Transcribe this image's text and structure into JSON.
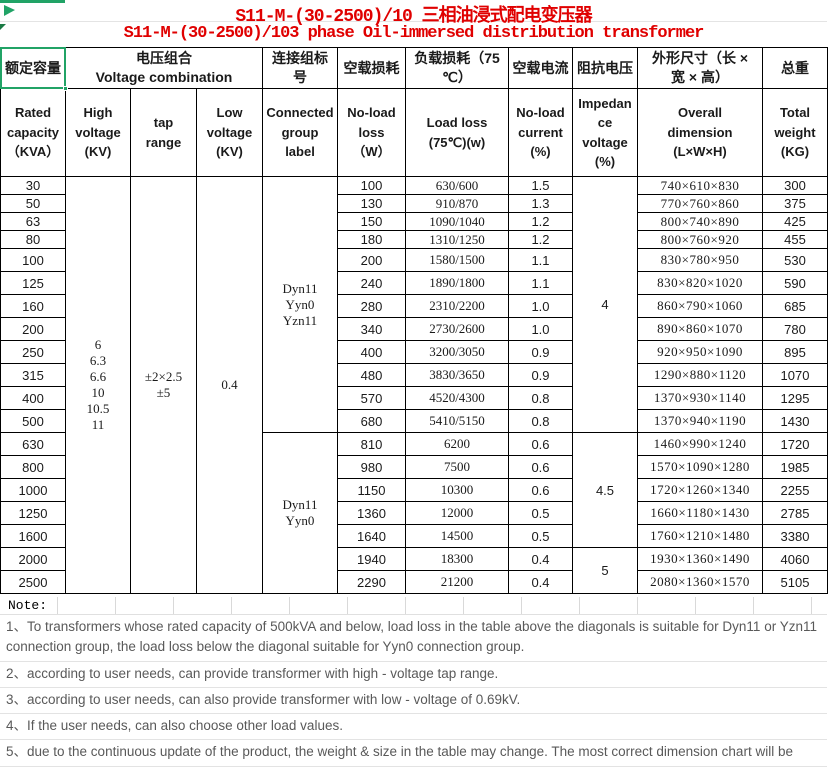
{
  "accent": {
    "selection_green": "#21a366",
    "title_red": "#e00000",
    "note_gray": "#595959"
  },
  "titles": {
    "line1": "S11-M-(30-2500)/10 三相油浸式配电变压器",
    "line2": "S11-M-(30-2500)/103 phase Oil-immersed distribution transformer"
  },
  "header_row1": {
    "rated_capacity": "额定容量",
    "voltage_combination_cn": "电压组合",
    "voltage_combination_en": "Voltage combination",
    "connection_group": "连接组标\n号",
    "no_load_loss": "空载损耗",
    "load_loss": "负载损耗（75\n℃）",
    "no_load_current": "空载电流",
    "impedance_voltage": "阻抗电压",
    "overall_dimension": "外形尺寸（长 ×\n宽 × 高）",
    "total_weight": "总重"
  },
  "header_row2": {
    "rated_capacity": "Rated\ncapacity\n（KVA）",
    "high_voltage": "High\nvoltage\n(KV)",
    "tap_range": "tap\nrange",
    "low_voltage": "Low\nvoltage\n(KV)",
    "connected_group": "Connected\ngroup\nlabel",
    "no_load_loss": "No-load\nloss\n（W）",
    "load_loss": "Load loss\n(75℃)(w)",
    "no_load_current": "No-load\ncurrent\n(%)",
    "impedance_voltage": "Impedan\nce\nvoltage\n(%)",
    "overall_dimension": "Overall\ndimension\n(L×W×H)",
    "total_weight": "Total\nweight\n(KG)"
  },
  "merged": {
    "high_voltage": "6\n6.3\n6.6\n10\n10.5\n11",
    "tap_range": "±2×2.5\n±5",
    "low_voltage": "0.4",
    "connected_group_upper": "Dyn11\nYyn0\nYzn11",
    "connected_group_lower": "Dyn11\nYyn0",
    "impedance_upper": "4",
    "impedance_mid": "4.5",
    "impedance_lower": "5"
  },
  "rows": [
    {
      "capacity": "30",
      "no_load_loss": "100",
      "load_loss": "630/600",
      "no_load_current": "1.5",
      "dimension": "740×610×830",
      "weight": "300"
    },
    {
      "capacity": "50",
      "no_load_loss": "130",
      "load_loss": "910/870",
      "no_load_current": "1.3",
      "dimension": "770×760×860",
      "weight": "375"
    },
    {
      "capacity": "63",
      "no_load_loss": "150",
      "load_loss": "1090/1040",
      "no_load_current": "1.2",
      "dimension": "800×740×890",
      "weight": "425"
    },
    {
      "capacity": "80",
      "no_load_loss": "180",
      "load_loss": "1310/1250",
      "no_load_current": "1.2",
      "dimension": "800×760×920",
      "weight": "455"
    },
    {
      "capacity": "100",
      "no_load_loss": "200",
      "load_loss": "1580/1500",
      "no_load_current": "1.1",
      "dimension": "830×780×950",
      "weight": "530"
    },
    {
      "capacity": "125",
      "no_load_loss": "240",
      "load_loss": "1890/1800",
      "no_load_current": "1.1",
      "dimension": "830×820×1020",
      "weight": "590"
    },
    {
      "capacity": "160",
      "no_load_loss": "280",
      "load_loss": "2310/2200",
      "no_load_current": "1.0",
      "dimension": "860×790×1060",
      "weight": "685"
    },
    {
      "capacity": "200",
      "no_load_loss": "340",
      "load_loss": "2730/2600",
      "no_load_current": "1.0",
      "dimension": "890×860×1070",
      "weight": "780"
    },
    {
      "capacity": "250",
      "no_load_loss": "400",
      "load_loss": "3200/3050",
      "no_load_current": "0.9",
      "dimension": "920×950×1090",
      "weight": "895"
    },
    {
      "capacity": "315",
      "no_load_loss": "480",
      "load_loss": "3830/3650",
      "no_load_current": "0.9",
      "dimension": "1290×880×1120",
      "weight": "1070"
    },
    {
      "capacity": "400",
      "no_load_loss": "570",
      "load_loss": "4520/4300",
      "no_load_current": "0.8",
      "dimension": "1370×930×1140",
      "weight": "1295"
    },
    {
      "capacity": "500",
      "no_load_loss": "680",
      "load_loss": "5410/5150",
      "no_load_current": "0.8",
      "dimension": "1370×940×1190",
      "weight": "1430"
    },
    {
      "capacity": "630",
      "no_load_loss": "810",
      "load_loss": "6200",
      "no_load_current": "0.6",
      "dimension": "1460×990×1240",
      "weight": "1720"
    },
    {
      "capacity": "800",
      "no_load_loss": "980",
      "load_loss": "7500",
      "no_load_current": "0.6",
      "dimension": "1570×1090×1280",
      "weight": "1985"
    },
    {
      "capacity": "1000",
      "no_load_loss": "1150",
      "load_loss": "10300",
      "no_load_current": "0.6",
      "dimension": "1720×1260×1340",
      "weight": "2255"
    },
    {
      "capacity": "1250",
      "no_load_loss": "1360",
      "load_loss": "12000",
      "no_load_current": "0.5",
      "dimension": "1660×1180×1430",
      "weight": "2785"
    },
    {
      "capacity": "1600",
      "no_load_loss": "1640",
      "load_loss": "14500",
      "no_load_current": "0.5",
      "dimension": "1760×1210×1480",
      "weight": "3380"
    },
    {
      "capacity": "2000",
      "no_load_loss": "1940",
      "load_loss": "18300",
      "no_load_current": "0.4",
      "dimension": "1930×1360×1490",
      "weight": "4060"
    },
    {
      "capacity": "2500",
      "no_load_loss": "2290",
      "load_loss": "21200",
      "no_load_current": "0.4",
      "dimension": "2080×1360×1570",
      "weight": "5105"
    }
  ],
  "note_label": "Note:",
  "notes": [
    "1、To transformers whose rated capacity of 500kVA and below, load loss in the table above the diagonals is suitable for Dyn11 or Yzn11 connection group, the load loss below the diagonal suitable for Yyn0 connection group.",
    "2、according to user needs, can provide transformer with high - voltage tap range.",
    "3、according to user needs, can also provide transformer with low - voltage of 0.69kV.",
    "4、If the user needs, can also choose other load values.",
    "5、due to the continuous update of the product, the weight & size in the table may change. The most correct dimension chart will be"
  ]
}
